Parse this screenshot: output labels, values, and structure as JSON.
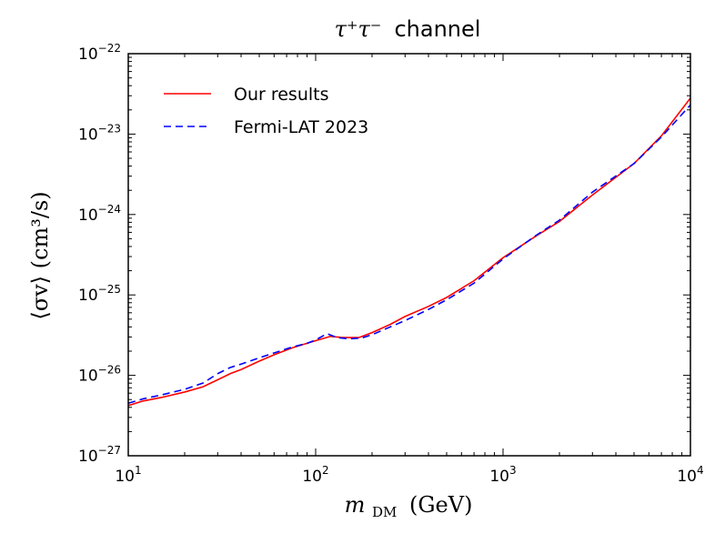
{
  "chart_data": {
    "type": "line",
    "title": {
      "math": "τ⁺τ⁻",
      "text": "channel"
    },
    "xlabel": {
      "symbol": "m",
      "subscript": "DM",
      "unit": "(GeV)"
    },
    "ylabel": {
      "text": "⟨σv⟩ (cm³/s)"
    },
    "xscale": "log",
    "yscale": "log",
    "xlim": [
      10,
      10000
    ],
    "ylim": [
      1e-27,
      1e-22
    ],
    "xticks": [
      {
        "value": 10,
        "base": "10",
        "exp": "1"
      },
      {
        "value": 100,
        "base": "10",
        "exp": "2"
      },
      {
        "value": 1000,
        "base": "10",
        "exp": "3"
      },
      {
        "value": 10000,
        "base": "10",
        "exp": "4"
      }
    ],
    "yticks": [
      {
        "value": 1e-27,
        "base": "10",
        "exp": "−27"
      },
      {
        "value": 1e-26,
        "base": "10",
        "exp": "−26"
      },
      {
        "value": 1e-25,
        "base": "10",
        "exp": "−25"
      },
      {
        "value": 1e-24,
        "base": "10",
        "exp": "−24"
      },
      {
        "value": 1e-23,
        "base": "10",
        "exp": "−23"
      },
      {
        "value": 1e-22,
        "base": "10",
        "exp": "−22"
      }
    ],
    "legend_position": "top-left",
    "series": [
      {
        "name": "Our results",
        "color": "#ff0000",
        "style": "solid",
        "x": [
          10,
          12,
          15,
          20,
          25,
          30,
          35,
          40,
          50,
          60,
          75,
          90,
          100,
          120,
          140,
          170,
          200,
          250,
          300,
          400,
          500,
          700,
          1000,
          1500,
          2000,
          3000,
          5000,
          7000,
          10000
        ],
        "y": [
          4.2e-27,
          4.8e-27,
          5.3e-27,
          6.2e-27,
          7.2e-27,
          8.8e-27,
          1.05e-26,
          1.18e-26,
          1.5e-26,
          1.8e-26,
          2.2e-26,
          2.5e-26,
          2.7e-26,
          3.05e-26,
          2.95e-26,
          2.95e-26,
          3.4e-26,
          4.3e-26,
          5.4e-26,
          7.2e-26,
          9.3e-26,
          1.5e-25,
          2.9e-25,
          5.4e-25,
          8.2e-25,
          1.75e-24,
          4.3e-24,
          9.5e-24,
          2.8e-23
        ]
      },
      {
        "name": "Fermi-LAT 2023",
        "color": "#0000ff",
        "style": "dashed",
        "x": [
          10,
          12,
          15,
          20,
          25,
          30,
          35,
          40,
          50,
          60,
          75,
          90,
          100,
          115,
          130,
          150,
          175,
          200,
          250,
          300,
          400,
          500,
          700,
          1000,
          1500,
          2000,
          3000,
          5000,
          7000,
          10000
        ],
        "y": [
          4.5e-27,
          5.1e-27,
          5.7e-27,
          6.7e-27,
          8e-27,
          1.05e-26,
          1.25e-26,
          1.38e-26,
          1.65e-26,
          1.9e-26,
          2.25e-26,
          2.5e-26,
          2.75e-26,
          3.3e-26,
          2.95e-26,
          2.85e-26,
          2.9e-26,
          3.2e-26,
          4e-26,
          4.8e-26,
          6.6e-26,
          8.7e-26,
          1.4e-25,
          2.8e-25,
          5.5e-25,
          8.5e-25,
          1.9e-24,
          4.3e-24,
          9.2e-24,
          2.3e-23
        ]
      }
    ]
  }
}
